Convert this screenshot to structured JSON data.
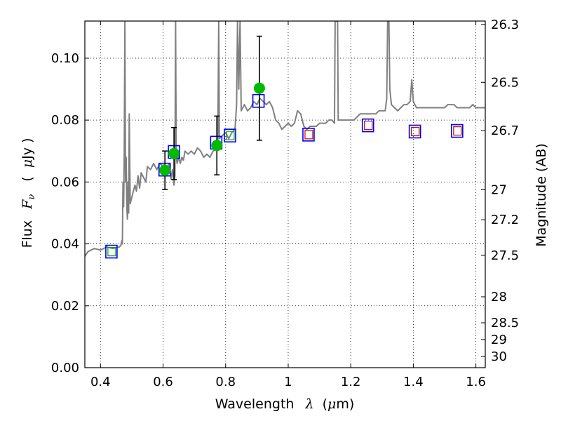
{
  "chart_data": {
    "type": "scatter",
    "xlabel": "Wavelength",
    "xlabel_symbol": "λ",
    "xlabel_unit_prefix": "(",
    "xlabel_unit_mu": "μ",
    "xlabel_unit_suffix": "m)",
    "ylabel": "Flux",
    "ylabel_symbol": "F",
    "ylabel_symbol_sub": "ν",
    "ylabel_unit_prefix": "(",
    "ylabel_unit_mu": "μ",
    "ylabel_unit_suffix": "Jy )",
    "y2label": "Magnitude (AB)",
    "xlim": [
      0.35,
      1.63
    ],
    "ylim": [
      0.0,
      0.112
    ],
    "grid": true,
    "x_ticks": [
      {
        "value": 0.4,
        "label": "0.4"
      },
      {
        "value": 0.6,
        "label": "0.6"
      },
      {
        "value": 0.8,
        "label": "0.8"
      },
      {
        "value": 1.0,
        "label": "1"
      },
      {
        "value": 1.2,
        "label": "1.2"
      },
      {
        "value": 1.4,
        "label": "1.4"
      },
      {
        "value": 1.6,
        "label": "1.6"
      }
    ],
    "y_ticks": [
      {
        "value": 0.0,
        "label": "0.00"
      },
      {
        "value": 0.02,
        "label": "0.02"
      },
      {
        "value": 0.04,
        "label": "0.04"
      },
      {
        "value": 0.06,
        "label": "0.06"
      },
      {
        "value": 0.08,
        "label": "0.08"
      },
      {
        "value": 0.1,
        "label": "0.10"
      }
    ],
    "y2_ticks": [
      {
        "flux": 0.1109,
        "label": "26.3"
      },
      {
        "flux": 0.0922,
        "label": "26.5"
      },
      {
        "flux": 0.0766,
        "label": "26.7"
      },
      {
        "flux": 0.0575,
        "label": "27"
      },
      {
        "flux": 0.0478,
        "label": "27.2"
      },
      {
        "flux": 0.0363,
        "label": "27.5"
      },
      {
        "flux": 0.0229,
        "label": "28"
      },
      {
        "flux": 0.0145,
        "label": "28.5"
      },
      {
        "flux": 0.0091,
        "label": "29"
      },
      {
        "flux": 0.0036,
        "label": "30"
      }
    ],
    "series": [
      {
        "name": "model-spectrum",
        "kind": "line",
        "color": "#808080",
        "points": [
          [
            0.35,
            0.036
          ],
          [
            0.36,
            0.0375
          ],
          [
            0.38,
            0.0385
          ],
          [
            0.4,
            0.038
          ],
          [
            0.42,
            0.039
          ],
          [
            0.44,
            0.0385
          ],
          [
            0.46,
            0.039
          ],
          [
            0.465,
            0.0395
          ],
          [
            0.468,
            0.041
          ],
          [
            0.47,
            0.04
          ],
          [
            0.472,
            0.06
          ],
          [
            0.474,
            0.052
          ],
          [
            0.476,
            0.07
          ],
          [
            0.478,
            0.112
          ],
          [
            0.48,
            0.06
          ],
          [
            0.482,
            0.068
          ],
          [
            0.484,
            0.052
          ],
          [
            0.486,
            0.048
          ],
          [
            0.488,
            0.06
          ],
          [
            0.49,
            0.05
          ],
          [
            0.492,
            0.082
          ],
          [
            0.495,
            0.053
          ],
          [
            0.5,
            0.055
          ],
          [
            0.51,
            0.059
          ],
          [
            0.515,
            0.057
          ],
          [
            0.52,
            0.062
          ],
          [
            0.525,
            0.058
          ],
          [
            0.53,
            0.063
          ],
          [
            0.535,
            0.062
          ],
          [
            0.54,
            0.061
          ],
          [
            0.545,
            0.06
          ],
          [
            0.55,
            0.065
          ],
          [
            0.56,
            0.064
          ],
          [
            0.57,
            0.066
          ],
          [
            0.58,
            0.064
          ],
          [
            0.59,
            0.066
          ],
          [
            0.6,
            0.065
          ],
          [
            0.61,
            0.064
          ],
          [
            0.62,
            0.066
          ],
          [
            0.625,
            0.061
          ],
          [
            0.63,
            0.064
          ],
          [
            0.635,
            0.059
          ],
          [
            0.638,
            0.062
          ],
          [
            0.64,
            0.112
          ],
          [
            0.642,
            0.068
          ],
          [
            0.645,
            0.066
          ],
          [
            0.65,
            0.068
          ],
          [
            0.655,
            0.066
          ],
          [
            0.66,
            0.068
          ],
          [
            0.665,
            0.067
          ],
          [
            0.67,
            0.07
          ],
          [
            0.68,
            0.069
          ],
          [
            0.69,
            0.07
          ],
          [
            0.7,
            0.069
          ],
          [
            0.71,
            0.071
          ],
          [
            0.72,
            0.07
          ],
          [
            0.73,
            0.068
          ],
          [
            0.74,
            0.069
          ],
          [
            0.75,
            0.068
          ],
          [
            0.76,
            0.07
          ],
          [
            0.77,
            0.071
          ],
          [
            0.775,
            0.073
          ],
          [
            0.778,
            0.112
          ],
          [
            0.78,
            0.074
          ],
          [
            0.79,
            0.075
          ],
          [
            0.8,
            0.076
          ],
          [
            0.81,
            0.074
          ],
          [
            0.82,
            0.076
          ],
          [
            0.83,
            0.077
          ],
          [
            0.835,
            0.085
          ],
          [
            0.838,
            0.112
          ],
          [
            0.842,
            0.09
          ],
          [
            0.846,
            0.112
          ],
          [
            0.85,
            0.083
          ],
          [
            0.86,
            0.085
          ],
          [
            0.87,
            0.083
          ],
          [
            0.88,
            0.084
          ],
          [
            0.89,
            0.086
          ],
          [
            0.9,
            0.085
          ],
          [
            0.91,
            0.087
          ],
          [
            0.92,
            0.086
          ],
          [
            0.93,
            0.085
          ],
          [
            0.94,
            0.086
          ],
          [
            0.95,
            0.084
          ],
          [
            0.96,
            0.08
          ],
          [
            0.97,
            0.079
          ],
          [
            0.98,
            0.077
          ],
          [
            0.99,
            0.078
          ],
          [
            1.0,
            0.079
          ],
          [
            1.01,
            0.078
          ],
          [
            1.02,
            0.079
          ],
          [
            1.03,
            0.083
          ],
          [
            1.04,
            0.082
          ],
          [
            1.05,
            0.078
          ],
          [
            1.06,
            0.077
          ],
          [
            1.07,
            0.078
          ],
          [
            1.08,
            0.078
          ],
          [
            1.09,
            0.078
          ],
          [
            1.1,
            0.079
          ],
          [
            1.11,
            0.079
          ],
          [
            1.12,
            0.079
          ],
          [
            1.13,
            0.08
          ],
          [
            1.14,
            0.08
          ],
          [
            1.148,
            0.079
          ],
          [
            1.15,
            0.112
          ],
          [
            1.158,
            0.112
          ],
          [
            1.16,
            0.08
          ],
          [
            1.17,
            0.08
          ],
          [
            1.18,
            0.08
          ],
          [
            1.19,
            0.08
          ],
          [
            1.2,
            0.08
          ],
          [
            1.21,
            0.08
          ],
          [
            1.22,
            0.081
          ],
          [
            1.23,
            0.082
          ],
          [
            1.24,
            0.082
          ],
          [
            1.25,
            0.082
          ],
          [
            1.26,
            0.082
          ],
          [
            1.27,
            0.082
          ],
          [
            1.28,
            0.082
          ],
          [
            1.29,
            0.083
          ],
          [
            1.3,
            0.083
          ],
          [
            1.31,
            0.083
          ],
          [
            1.315,
            0.087
          ],
          [
            1.318,
            0.112
          ],
          [
            1.322,
            0.112
          ],
          [
            1.325,
            0.09
          ],
          [
            1.33,
            0.085
          ],
          [
            1.34,
            0.084
          ],
          [
            1.35,
            0.083
          ],
          [
            1.36,
            0.084
          ],
          [
            1.37,
            0.085
          ],
          [
            1.38,
            0.085
          ],
          [
            1.39,
            0.086
          ],
          [
            1.395,
            0.093
          ],
          [
            1.4,
            0.086
          ],
          [
            1.41,
            0.084
          ],
          [
            1.42,
            0.084
          ],
          [
            1.43,
            0.084
          ],
          [
            1.44,
            0.084
          ],
          [
            1.45,
            0.084
          ],
          [
            1.46,
            0.084
          ],
          [
            1.47,
            0.084
          ],
          [
            1.48,
            0.084
          ],
          [
            1.49,
            0.084
          ],
          [
            1.5,
            0.084
          ],
          [
            1.51,
            0.085
          ],
          [
            1.52,
            0.085
          ],
          [
            1.53,
            0.085
          ],
          [
            1.54,
            0.084
          ],
          [
            1.55,
            0.084
          ],
          [
            1.56,
            0.084
          ],
          [
            1.57,
            0.084
          ],
          [
            1.58,
            0.084
          ],
          [
            1.59,
            0.085
          ],
          [
            1.6,
            0.084
          ],
          [
            1.61,
            0.084
          ],
          [
            1.63,
            0.084
          ]
        ]
      },
      {
        "name": "model-photometry",
        "kind": "open-square",
        "color": "#0000ff",
        "points": [
          [
            0.435,
            0.0375
          ],
          [
            0.605,
            0.064
          ],
          [
            0.635,
            0.0697
          ],
          [
            0.77,
            0.0727
          ],
          [
            0.814,
            0.075
          ],
          [
            0.905,
            0.0862
          ],
          [
            1.065,
            0.0753
          ],
          [
            1.255,
            0.0783
          ],
          [
            1.405,
            0.0763
          ],
          [
            1.54,
            0.0765
          ]
        ]
      },
      {
        "name": "optical-filter-squares",
        "kind": "open-square-small",
        "color": "#00aa00",
        "points": [
          [
            0.435,
            0.0375
          ],
          [
            0.814,
            0.075
          ]
        ]
      },
      {
        "name": "nir-filter-squares",
        "kind": "open-square-small",
        "color": "#cc0000",
        "points": [
          [
            1.065,
            0.0753
          ],
          [
            1.255,
            0.0783
          ],
          [
            1.405,
            0.0763
          ],
          [
            1.54,
            0.0765
          ]
        ]
      },
      {
        "name": "observed-flux",
        "kind": "filled-circle-errorbar",
        "color": "#00bb00",
        "points": [
          {
            "x": 0.606,
            "y": 0.0638,
            "yerr": [
              0.0062,
              0.0062
            ]
          },
          {
            "x": 0.635,
            "y": 0.0692,
            "yerr": [
              0.0084,
              0.0084
            ]
          },
          {
            "x": 0.772,
            "y": 0.0718,
            "yerr": [
              0.0095,
              0.0095
            ]
          },
          {
            "x": 0.908,
            "y": 0.0903,
            "yerr": [
              0.0168,
              0.0168
            ]
          }
        ]
      }
    ]
  }
}
